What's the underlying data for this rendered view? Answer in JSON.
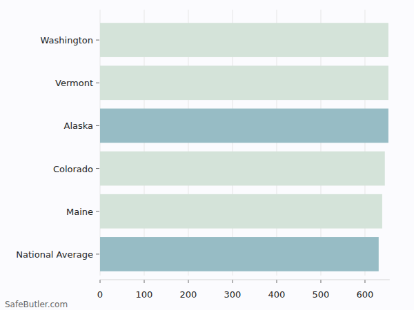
{
  "chart_data": {
    "type": "bar",
    "orientation": "horizontal",
    "categories": [
      "Washington",
      "Vermont",
      "Alaska",
      "Colorado",
      "Maine",
      "National Average"
    ],
    "values": [
      653,
      653,
      653,
      645,
      639,
      631
    ],
    "colors": [
      "#d4e3d9",
      "#d4e3d9",
      "#97bcc5",
      "#d4e3d9",
      "#d4e3d9",
      "#97bcc5"
    ],
    "xlim": [
      0,
      656
    ],
    "xticks": [
      0,
      100,
      200,
      300,
      400,
      500,
      600
    ],
    "grid": true,
    "annotations": [
      "SafeButler.com"
    ]
  }
}
